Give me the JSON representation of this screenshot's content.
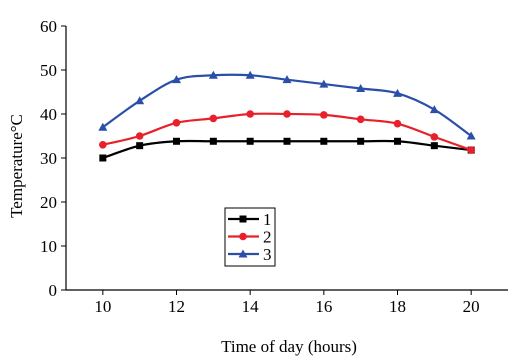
{
  "chart_data": {
    "type": "line",
    "xlabel": "Time of day (hours)",
    "ylabel": "Temperature°C",
    "xlim": [
      9,
      21
    ],
    "ylim": [
      0,
      60
    ],
    "x_ticks": [
      10,
      12,
      14,
      16,
      18,
      20
    ],
    "y_ticks": [
      0,
      10,
      20,
      30,
      40,
      50,
      60
    ],
    "x": [
      10,
      11,
      12,
      13,
      14,
      15,
      16,
      17,
      18,
      19,
      20
    ],
    "series": [
      {
        "name": "1",
        "color": "#000000",
        "marker": "square",
        "values": [
          30,
          32.8,
          33.8,
          33.8,
          33.8,
          33.8,
          33.8,
          33.8,
          33.8,
          32.8,
          31.8
        ]
      },
      {
        "name": "2",
        "color": "#e8202a",
        "marker": "circle",
        "values": [
          33,
          35,
          38,
          39,
          40,
          40,
          39.8,
          38.8,
          37.8,
          34.8,
          31.8
        ]
      },
      {
        "name": "3",
        "color": "#2b4fa8",
        "marker": "triangle",
        "values": [
          37,
          43,
          47.8,
          48.8,
          48.8,
          47.8,
          46.8,
          45.8,
          44.7,
          41,
          35
        ]
      }
    ],
    "legend_position": "inside-lower-left",
    "grid": false
  }
}
